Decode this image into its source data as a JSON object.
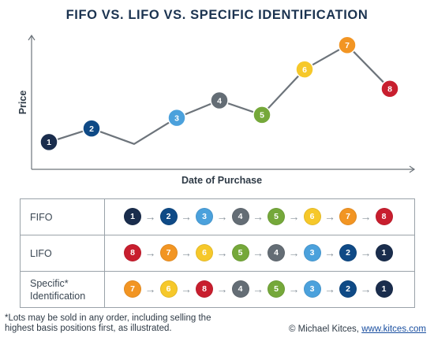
{
  "title": "FIFO VS. LIFO VS. SPECIFIC IDENTIFICATION",
  "chart_data": {
    "type": "line",
    "xlabel": "Date of Purchase",
    "ylabel": "Price",
    "points": [
      {
        "label": "1",
        "x": 1,
        "y": 2.0
      },
      {
        "label": "2",
        "x": 2,
        "y": 3.4
      },
      {
        "label": "",
        "x": 3,
        "y": 1.8
      },
      {
        "label": "3",
        "x": 4,
        "y": 4.5
      },
      {
        "label": "4",
        "x": 5,
        "y": 6.3
      },
      {
        "label": "5",
        "x": 6,
        "y": 4.8
      },
      {
        "label": "6",
        "x": 7,
        "y": 9.5
      },
      {
        "label": "7",
        "x": 8,
        "y": 12.0
      },
      {
        "label": "8",
        "x": 9,
        "y": 7.5
      }
    ],
    "line_color": "#6d747b"
  },
  "lot_colors": {
    "1": "#1a2d4d",
    "2": "#0f4a86",
    "3": "#4ba1dc",
    "4": "#646d75",
    "5": "#75a83a",
    "6": "#f6c82a",
    "7": "#f29523",
    "8": "#c81e2e"
  },
  "table": {
    "rows": [
      {
        "label": "FIFO",
        "sequence": [
          "1",
          "2",
          "3",
          "4",
          "5",
          "6",
          "7",
          "8"
        ]
      },
      {
        "label": "LIFO",
        "sequence": [
          "8",
          "7",
          "6",
          "5",
          "4",
          "3",
          "2",
          "1"
        ]
      },
      {
        "label": "Specific*\nIdentification",
        "sequence": [
          "7",
          "6",
          "8",
          "4",
          "5",
          "3",
          "2",
          "1"
        ]
      }
    ]
  },
  "footnote": "*Lots may be sold in any order, including selling the\n highest basis positions first, as illustrated.",
  "credit": {
    "prefix": "© Michael Kitces,",
    "link": "www.kitces.com"
  }
}
